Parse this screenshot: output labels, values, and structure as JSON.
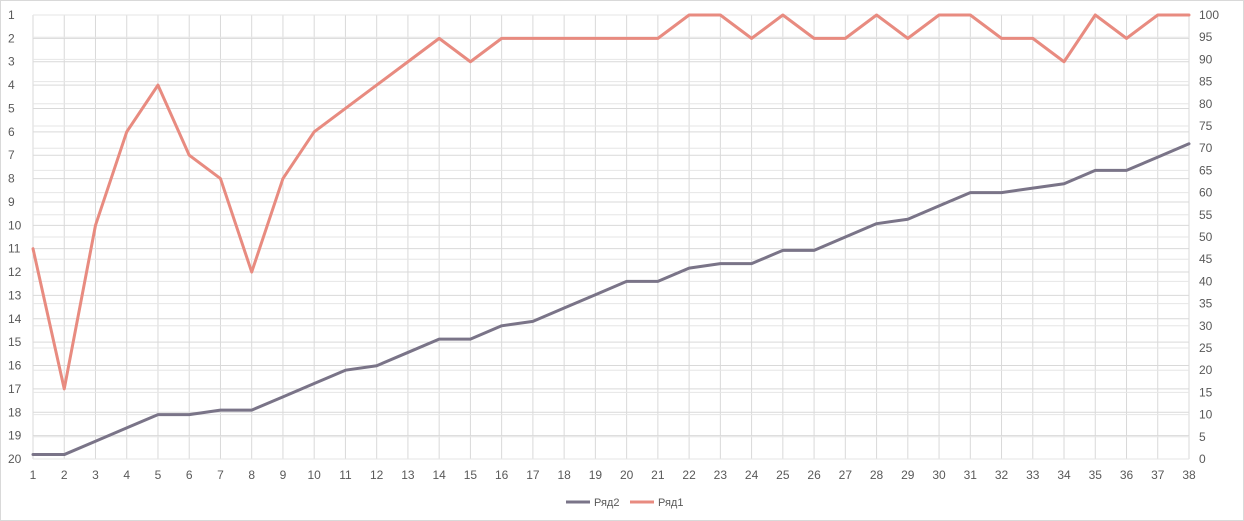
{
  "chart_data": {
    "type": "line",
    "x": [
      1,
      2,
      3,
      4,
      5,
      6,
      7,
      8,
      9,
      10,
      11,
      12,
      13,
      14,
      15,
      16,
      17,
      18,
      19,
      20,
      21,
      22,
      23,
      24,
      25,
      26,
      27,
      28,
      29,
      30,
      31,
      32,
      33,
      34,
      35,
      36,
      37,
      38
    ],
    "left_axis": {
      "ticks": [
        1,
        2,
        3,
        4,
        5,
        6,
        7,
        8,
        9,
        10,
        11,
        12,
        13,
        14,
        15,
        16,
        17,
        18,
        19,
        20
      ],
      "ylim": [
        1,
        20
      ],
      "reversed": true
    },
    "right_axis": {
      "ticks": [
        0,
        5,
        10,
        15,
        20,
        25,
        30,
        35,
        40,
        45,
        50,
        55,
        60,
        65,
        70,
        75,
        80,
        85,
        90,
        95,
        100
      ],
      "ylim": [
        0,
        100
      ]
    },
    "grid": true,
    "legend_position": "bottom",
    "series": [
      {
        "name": "Ряд2",
        "color": "#7a7488",
        "axis": "right",
        "values": [
          1,
          1,
          4,
          7,
          10,
          10,
          11,
          11,
          14,
          17,
          20,
          21,
          24,
          27,
          27,
          30,
          31,
          34,
          37,
          40,
          40,
          43,
          44,
          44,
          47,
          47,
          50,
          53,
          54,
          57,
          60,
          60,
          61,
          62,
          65,
          65,
          68,
          71
        ]
      },
      {
        "name": "Ряд1",
        "color": "#e88b80",
        "axis": "left",
        "values": [
          11,
          17,
          10,
          6,
          4,
          7,
          8,
          12,
          8,
          6,
          5,
          4,
          3,
          2,
          3,
          2,
          2,
          2,
          2,
          2,
          2,
          1,
          1,
          2,
          1,
          2,
          2,
          1,
          2,
          1,
          1,
          2,
          2,
          3,
          1,
          2,
          1,
          1
        ]
      }
    ],
    "title": "",
    "xlabel": "",
    "ylabel": ""
  }
}
